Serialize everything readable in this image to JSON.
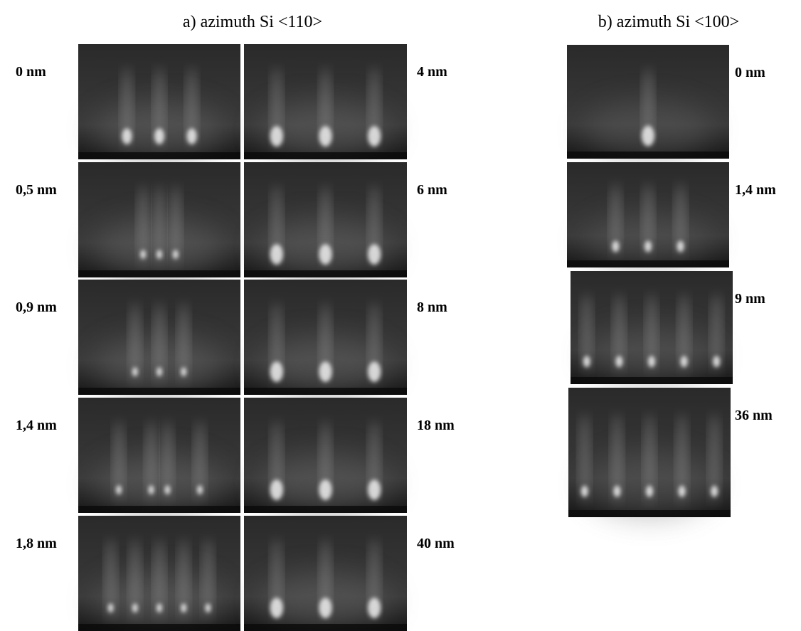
{
  "panel_a": {
    "title": "a) azimuth Si <110>",
    "left_labels": [
      "0 nm",
      "0,5 nm",
      "0,9 nm",
      "1,4 nm",
      "1,8 nm"
    ],
    "right_labels": [
      "4 nm",
      "6 nm",
      "8 nm",
      "18 nm",
      "40 nm"
    ]
  },
  "panel_b": {
    "title": "b) azimuth Si <100>",
    "labels": [
      "0 nm",
      "1,4 nm",
      "9 nm",
      "36 nm"
    ]
  }
}
